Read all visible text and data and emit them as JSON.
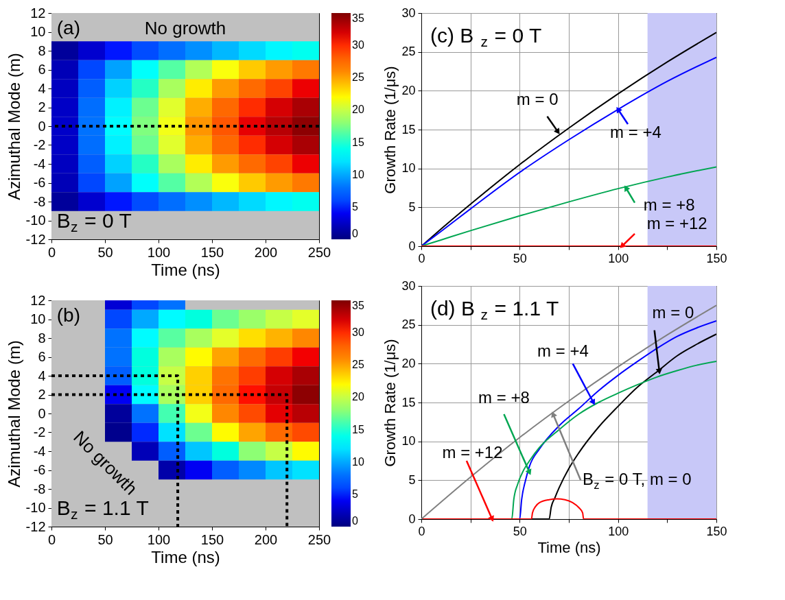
{
  "chart_data": [
    {
      "type": "heatmap",
      "xlabel": "Time (ns)",
      "ylabel": "Azimuthal Mode (m)",
      "x": [
        12.5,
        37.5,
        62.5,
        87.5,
        112.5,
        137.5,
        162.5,
        187.5,
        212.5,
        237.5
      ],
      "y": [
        8,
        6,
        4,
        2,
        0,
        -2,
        -4,
        -6,
        -8
      ],
      "cells": [
        [
          1,
          2.8,
          4.6,
          6.2,
          7.8,
          9.2,
          10.5,
          11.7,
          12.8,
          13.8
        ],
        [
          2,
          6,
          9.8,
          13.3,
          16.4,
          19.3,
          21.7,
          23.7,
          25.3,
          26.6
        ],
        [
          2.3,
          7,
          11.4,
          15.4,
          19,
          22.5,
          25.3,
          27.5,
          29.3,
          31.2
        ],
        [
          2.5,
          7.8,
          12.6,
          17,
          20.9,
          24.7,
          27.6,
          30,
          32,
          33.5
        ],
        [
          2.6,
          8,
          13,
          17.5,
          21.5,
          25.5,
          28.5,
          31.4,
          33,
          34.5
        ],
        [
          2.5,
          7.8,
          12.6,
          17,
          20.9,
          24.7,
          27.6,
          30,
          32,
          33.5
        ],
        [
          2.3,
          7,
          11.4,
          15.4,
          19,
          22.5,
          25.3,
          27.5,
          29.3,
          31.2
        ],
        [
          2,
          6,
          9.8,
          13.3,
          16.4,
          19.3,
          21.7,
          23.7,
          25.3,
          26.6
        ],
        [
          1,
          2.8,
          4.6,
          6.2,
          7.8,
          9.2,
          10.5,
          11.7,
          12.8,
          13.8
        ]
      ],
      "xlim": [
        0,
        250
      ],
      "xticks": [
        0,
        50,
        100,
        150,
        200,
        250
      ],
      "ylim": [
        -12,
        12
      ],
      "yticks": [
        -12,
        -10,
        -8,
        -6,
        -4,
        -2,
        0,
        2,
        4,
        6,
        8,
        10,
        12
      ],
      "clim": [
        0,
        35
      ],
      "cticks": [
        0,
        5,
        10,
        15,
        20,
        25,
        30,
        35
      ],
      "ref_lines": [
        {
          "axis": "y",
          "value": 0,
          "color": "#000000",
          "line_style": "dotted"
        }
      ],
      "annotations": [
        "(a)",
        "No growth",
        "B$_{z}$ = 0 T"
      ]
    },
    {
      "type": "line",
      "ylabel": "Growth Rate (1/μs)",
      "series": [
        {
          "color": "#000000",
          "x": [
            0,
            10,
            25,
            50,
            75,
            100,
            125,
            150
          ],
          "values": [
            0,
            2.2,
            5.4,
            10.5,
            15.2,
            19.6,
            23.7,
            27.5
          ]
        },
        {
          "color": "#0000ff",
          "x": [
            0,
            10,
            25,
            50,
            75,
            100,
            125,
            150
          ],
          "values": [
            0,
            1.9,
            4.8,
            9.5,
            13.7,
            17.6,
            21.2,
            24.3
          ]
        },
        {
          "color": "#00a651",
          "x": [
            0,
            10,
            25,
            50,
            75,
            100,
            125,
            150
          ],
          "values": [
            0,
            0.8,
            2,
            3.9,
            5.7,
            7.4,
            8.9,
            10.2
          ]
        },
        {
          "color": "#ff0000",
          "x": [
            0,
            10,
            25,
            50,
            75,
            100,
            125,
            150
          ],
          "values": [
            0,
            0,
            0,
            0,
            0,
            0,
            0,
            0
          ]
        }
      ],
      "xlim": [
        0,
        150
      ],
      "xticks": [
        0,
        {
          "value": 25,
          "label": null
        },
        50,
        {
          "value": 75,
          "label": null
        },
        100,
        {
          "value": 125,
          "label": null
        },
        150
      ],
      "ylim": [
        0,
        30
      ],
      "yticks": [
        0,
        5,
        10,
        15,
        20,
        25,
        30
      ],
      "grid": true,
      "line_style": "solid",
      "bands": [
        {
          "axis": "x",
          "from": 115,
          "to": 150,
          "color": "#c8c8f8"
        }
      ],
      "annotations": [
        "(c)  B$_{z}$ = 0 T",
        {
          "text": "m = 0",
          "x": 69.5,
          "y": 14.7
        },
        {
          "text": "m = +4",
          "x": 100,
          "y": 17.6
        },
        {
          "text": "m = +8",
          "x": 104,
          "y": 7.5
        },
        {
          "text": "m = +12",
          "x": 102,
          "y": 0
        }
      ]
    },
    {
      "type": "heatmap",
      "xlabel": "Time (ns)",
      "ylabel": "Azimuthal Mode (m)",
      "x": [
        12.5,
        37.5,
        62.5,
        87.5,
        112.5,
        137.5,
        162.5,
        187.5,
        212.5,
        237.5
      ],
      "y": [
        12,
        10,
        8,
        6,
        4,
        2,
        0,
        -2,
        -4,
        -6
      ],
      "cells": [
        [
          null,
          null,
          3,
          6,
          8,
          null,
          null,
          null,
          null,
          null
        ],
        [
          null,
          null,
          6,
          10,
          13,
          14.5,
          17,
          18.5,
          20,
          21
        ],
        [
          null,
          null,
          8,
          13,
          16.5,
          19,
          21,
          23,
          24.5,
          26
        ],
        [
          null,
          null,
          8,
          14.5,
          19,
          22,
          25,
          27.5,
          29.5,
          31
        ],
        [
          null,
          null,
          7,
          14.5,
          20,
          23.5,
          27,
          29.5,
          32,
          33.5
        ],
        [
          null,
          null,
          4,
          13,
          19,
          23.5,
          27.5,
          30.5,
          32.5,
          34.5
        ],
        [
          null,
          null,
          1,
          8,
          16,
          21.5,
          26,
          29,
          31.5,
          33
        ],
        [
          null,
          null,
          0.5,
          5,
          12,
          17,
          22,
          25,
          27.5,
          29
        ],
        [
          null,
          null,
          null,
          2,
          7,
          11,
          14.5,
          18,
          20,
          22
        ],
        [
          null,
          null,
          null,
          null,
          1.5,
          4,
          7,
          9,
          11,
          12
        ]
      ],
      "xlim": [
        0,
        250
      ],
      "xticks": [
        0,
        50,
        100,
        150,
        200,
        250
      ],
      "ylim": [
        -12,
        12
      ],
      "yticks": [
        -12,
        -10,
        -8,
        -6,
        -4,
        -2,
        0,
        2,
        4,
        6,
        8,
        10,
        12
      ],
      "clim": [
        0,
        35
      ],
      "cticks": [
        0,
        5,
        10,
        15,
        20,
        25,
        30,
        35
      ],
      "series": [
        {
          "type": "line",
          "color": "#000000",
          "line_style": "dotted",
          "x": [
            0,
            118,
            118
          ],
          "values": [
            4,
            4,
            -12
          ]
        },
        {
          "type": "line",
          "color": "#000000",
          "line_style": "dotted",
          "x": [
            0,
            220,
            220
          ],
          "values": [
            2,
            2,
            -12
          ]
        }
      ],
      "annotations": [
        "(b)",
        "No growth",
        "B$_{z}$ = 1.1 T"
      ]
    },
    {
      "type": "line",
      "xlabel": "Time (ns)",
      "ylabel": "Growth Rate (1/μs)",
      "series": [
        {
          "color": "#000000",
          "x": [
            0,
            65,
            66,
            68,
            70,
            75,
            80,
            90,
            100,
            110,
            120,
            130,
            140,
            150
          ],
          "values": [
            0,
            0,
            1.5,
            2.8,
            4,
            6.5,
            8.5,
            11.8,
            14.5,
            17,
            19,
            21,
            22.5,
            23.8
          ]
        },
        {
          "color": "#0000ff",
          "x": [
            0,
            50,
            51,
            53,
            55,
            60,
            70,
            80,
            90,
            100,
            110,
            120,
            130,
            140,
            150
          ],
          "values": [
            0,
            0,
            2.5,
            5,
            6.8,
            9,
            12,
            14.2,
            16.5,
            18.5,
            20.3,
            22,
            23.5,
            24.6,
            25.5
          ]
        },
        {
          "color": "#00a651",
          "x": [
            0,
            46,
            47,
            49,
            52,
            55,
            60,
            70,
            80,
            90,
            100,
            110,
            120,
            130,
            140,
            150
          ],
          "values": [
            0,
            0,
            2.5,
            4.5,
            6.3,
            7.5,
            9.2,
            11.5,
            13.5,
            15,
            16.2,
            17.3,
            18.3,
            19.1,
            19.8,
            20.3
          ]
        },
        {
          "color": "#ff0000",
          "x": [
            0,
            56,
            56.5,
            58,
            60,
            65,
            69,
            73,
            77,
            80,
            82,
            82.5,
            150
          ],
          "values": [
            0,
            0,
            0.8,
            1.6,
            2.1,
            2.5,
            2.6,
            2.5,
            2.1,
            1.5,
            0.8,
            0,
            0
          ]
        },
        {
          "color": "#808080",
          "x": [
            0,
            25,
            50,
            75,
            100,
            125,
            150
          ],
          "values": [
            0,
            5.4,
            10.5,
            15.2,
            19.6,
            23.7,
            27.5
          ]
        }
      ],
      "xlim": [
        0,
        150
      ],
      "xticks": [
        0,
        {
          "value": 25,
          "label": null
        },
        50,
        {
          "value": 75,
          "label": null
        },
        100,
        {
          "value": 125,
          "label": null
        },
        150
      ],
      "ylim": [
        0,
        30
      ],
      "yticks": [
        0,
        5,
        10,
        15,
        20,
        25,
        30
      ],
      "grid": true,
      "line_style": "solid",
      "bands": [
        {
          "axis": "x",
          "from": 115,
          "to": 150,
          "color": "#c8c8f8"
        }
      ],
      "annotations": [
        "(d)  B$_{z}$ = 1.1 T",
        {
          "text": "m = 0",
          "x": 121,
          "y": 19
        },
        {
          "text": "m = +4",
          "x": 87.5,
          "y": 15
        },
        {
          "text": "m = +8",
          "x": 55,
          "y": 6
        },
        {
          "text": "m = +12",
          "x": 36,
          "y": 0
        },
        {
          "text": "B$_{z}$ = 0 T, m = 0",
          "x": 67,
          "y": 13.5
        }
      ]
    }
  ]
}
